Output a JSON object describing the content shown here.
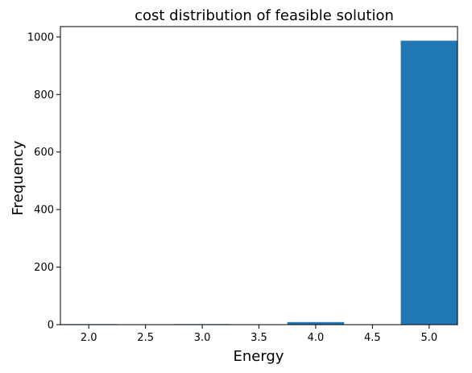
{
  "chart_data": {
    "type": "bar",
    "title": "cost distribution of feasible solution",
    "xlabel": "Energy",
    "ylabel": "Frequency",
    "bars": [
      {
        "x": 2.0,
        "value": 2
      },
      {
        "x": 3.0,
        "value": 2
      },
      {
        "x": 4.0,
        "value": 9
      },
      {
        "x": 5.0,
        "value": 987
      }
    ],
    "bar_width": 0.5,
    "xlim": [
      1.75,
      5.25
    ],
    "ylim": [
      0,
      1036
    ],
    "xticks": [
      "2.0",
      "2.5",
      "3.0",
      "3.5",
      "4.0",
      "4.5",
      "5.0"
    ],
    "yticks": [
      "0",
      "200",
      "400",
      "600",
      "800",
      "1000"
    ],
    "grid": false,
    "colors": {
      "bar": "#1f77b4"
    }
  }
}
